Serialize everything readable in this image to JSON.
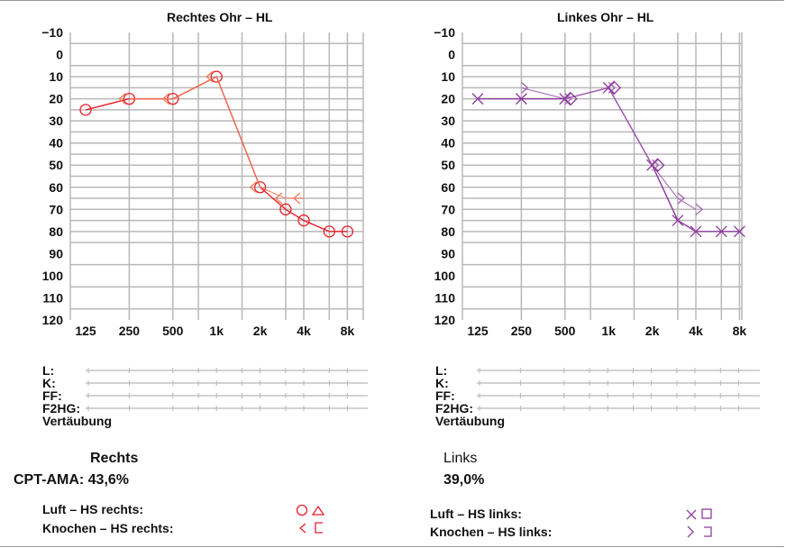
{
  "colors": {
    "right_air": "#e8202a",
    "right_bone": "#f07a55",
    "left_air": "#8e3a9e",
    "left_bone": "#a060b0",
    "grid": "#b8b8b8"
  },
  "chart_data": [
    {
      "type": "line",
      "title": "Rechtes Ohr – HL",
      "x_scale": "log",
      "x_tick_labels": [
        "125",
        "250",
        "500",
        "1k",
        "2k",
        "4k",
        "8k"
      ],
      "x_ticks": [
        125,
        250,
        500,
        1000,
        2000,
        4000,
        8000
      ],
      "y_tick_labels": [
        "−10",
        "0",
        "10",
        "20",
        "30",
        "40",
        "50",
        "60",
        "70",
        "80",
        "90",
        "100",
        "110",
        "120"
      ],
      "ylim": [
        -10,
        120
      ],
      "y_inverted": true,
      "grid": true,
      "series": [
        {
          "marker": "circle",
          "x": [
            125,
            250,
            500,
            1000,
            2000,
            3000,
            4000,
            6000,
            8000
          ],
          "y": [
            25,
            20,
            20,
            10,
            60,
            70,
            75,
            80,
            80
          ]
        },
        {
          "marker": "bone-left",
          "x": [
            250,
            500,
            1000,
            2000,
            3000,
            4000
          ],
          "y": [
            20,
            20,
            10,
            60,
            65,
            65
          ]
        }
      ]
    },
    {
      "type": "line",
      "title": "Linkes Ohr – HL",
      "x_scale": "log",
      "x_tick_labels": [
        "125",
        "250",
        "500",
        "1k",
        "2k",
        "4k",
        "8k"
      ],
      "x_ticks": [
        125,
        250,
        500,
        1000,
        2000,
        4000,
        8000
      ],
      "y_tick_labels": [
        "−10",
        "0",
        "10",
        "20",
        "30",
        "40",
        "50",
        "60",
        "70",
        "80",
        "90",
        "100",
        "110",
        "120"
      ],
      "ylim": [
        -10,
        120
      ],
      "y_inverted": true,
      "grid": true,
      "series": [
        {
          "marker": "cross",
          "x": [
            125,
            250,
            500,
            1000,
            2000,
            3000,
            4000,
            6000,
            8000
          ],
          "y": [
            20,
            20,
            20,
            15,
            50,
            75,
            80,
            80,
            80
          ]
        },
        {
          "marker": "bone-right",
          "x": [
            250,
            500,
            1000,
            2000,
            3000,
            4000
          ],
          "y": [
            15,
            20,
            15,
            50,
            65,
            70
          ]
        },
        {
          "marker": "diamond",
          "x": [
            500,
            1000,
            2000
          ],
          "y": [
            20,
            15,
            50
          ]
        }
      ]
    }
  ],
  "rows": [
    "L:",
    "K:",
    "FF:",
    "F2HG:",
    "Vertäubung"
  ],
  "right": {
    "heading": "Rechts",
    "cpt_label": "CPT-AMA: 43,6%",
    "air_label": "Luft – HS rechts:",
    "bone_label": "Knochen – HS rechts:"
  },
  "left": {
    "heading": "Links",
    "cpt_value": "39,0%",
    "air_label": "Luft – HS links:",
    "bone_label": "Knochen – HS links:"
  }
}
